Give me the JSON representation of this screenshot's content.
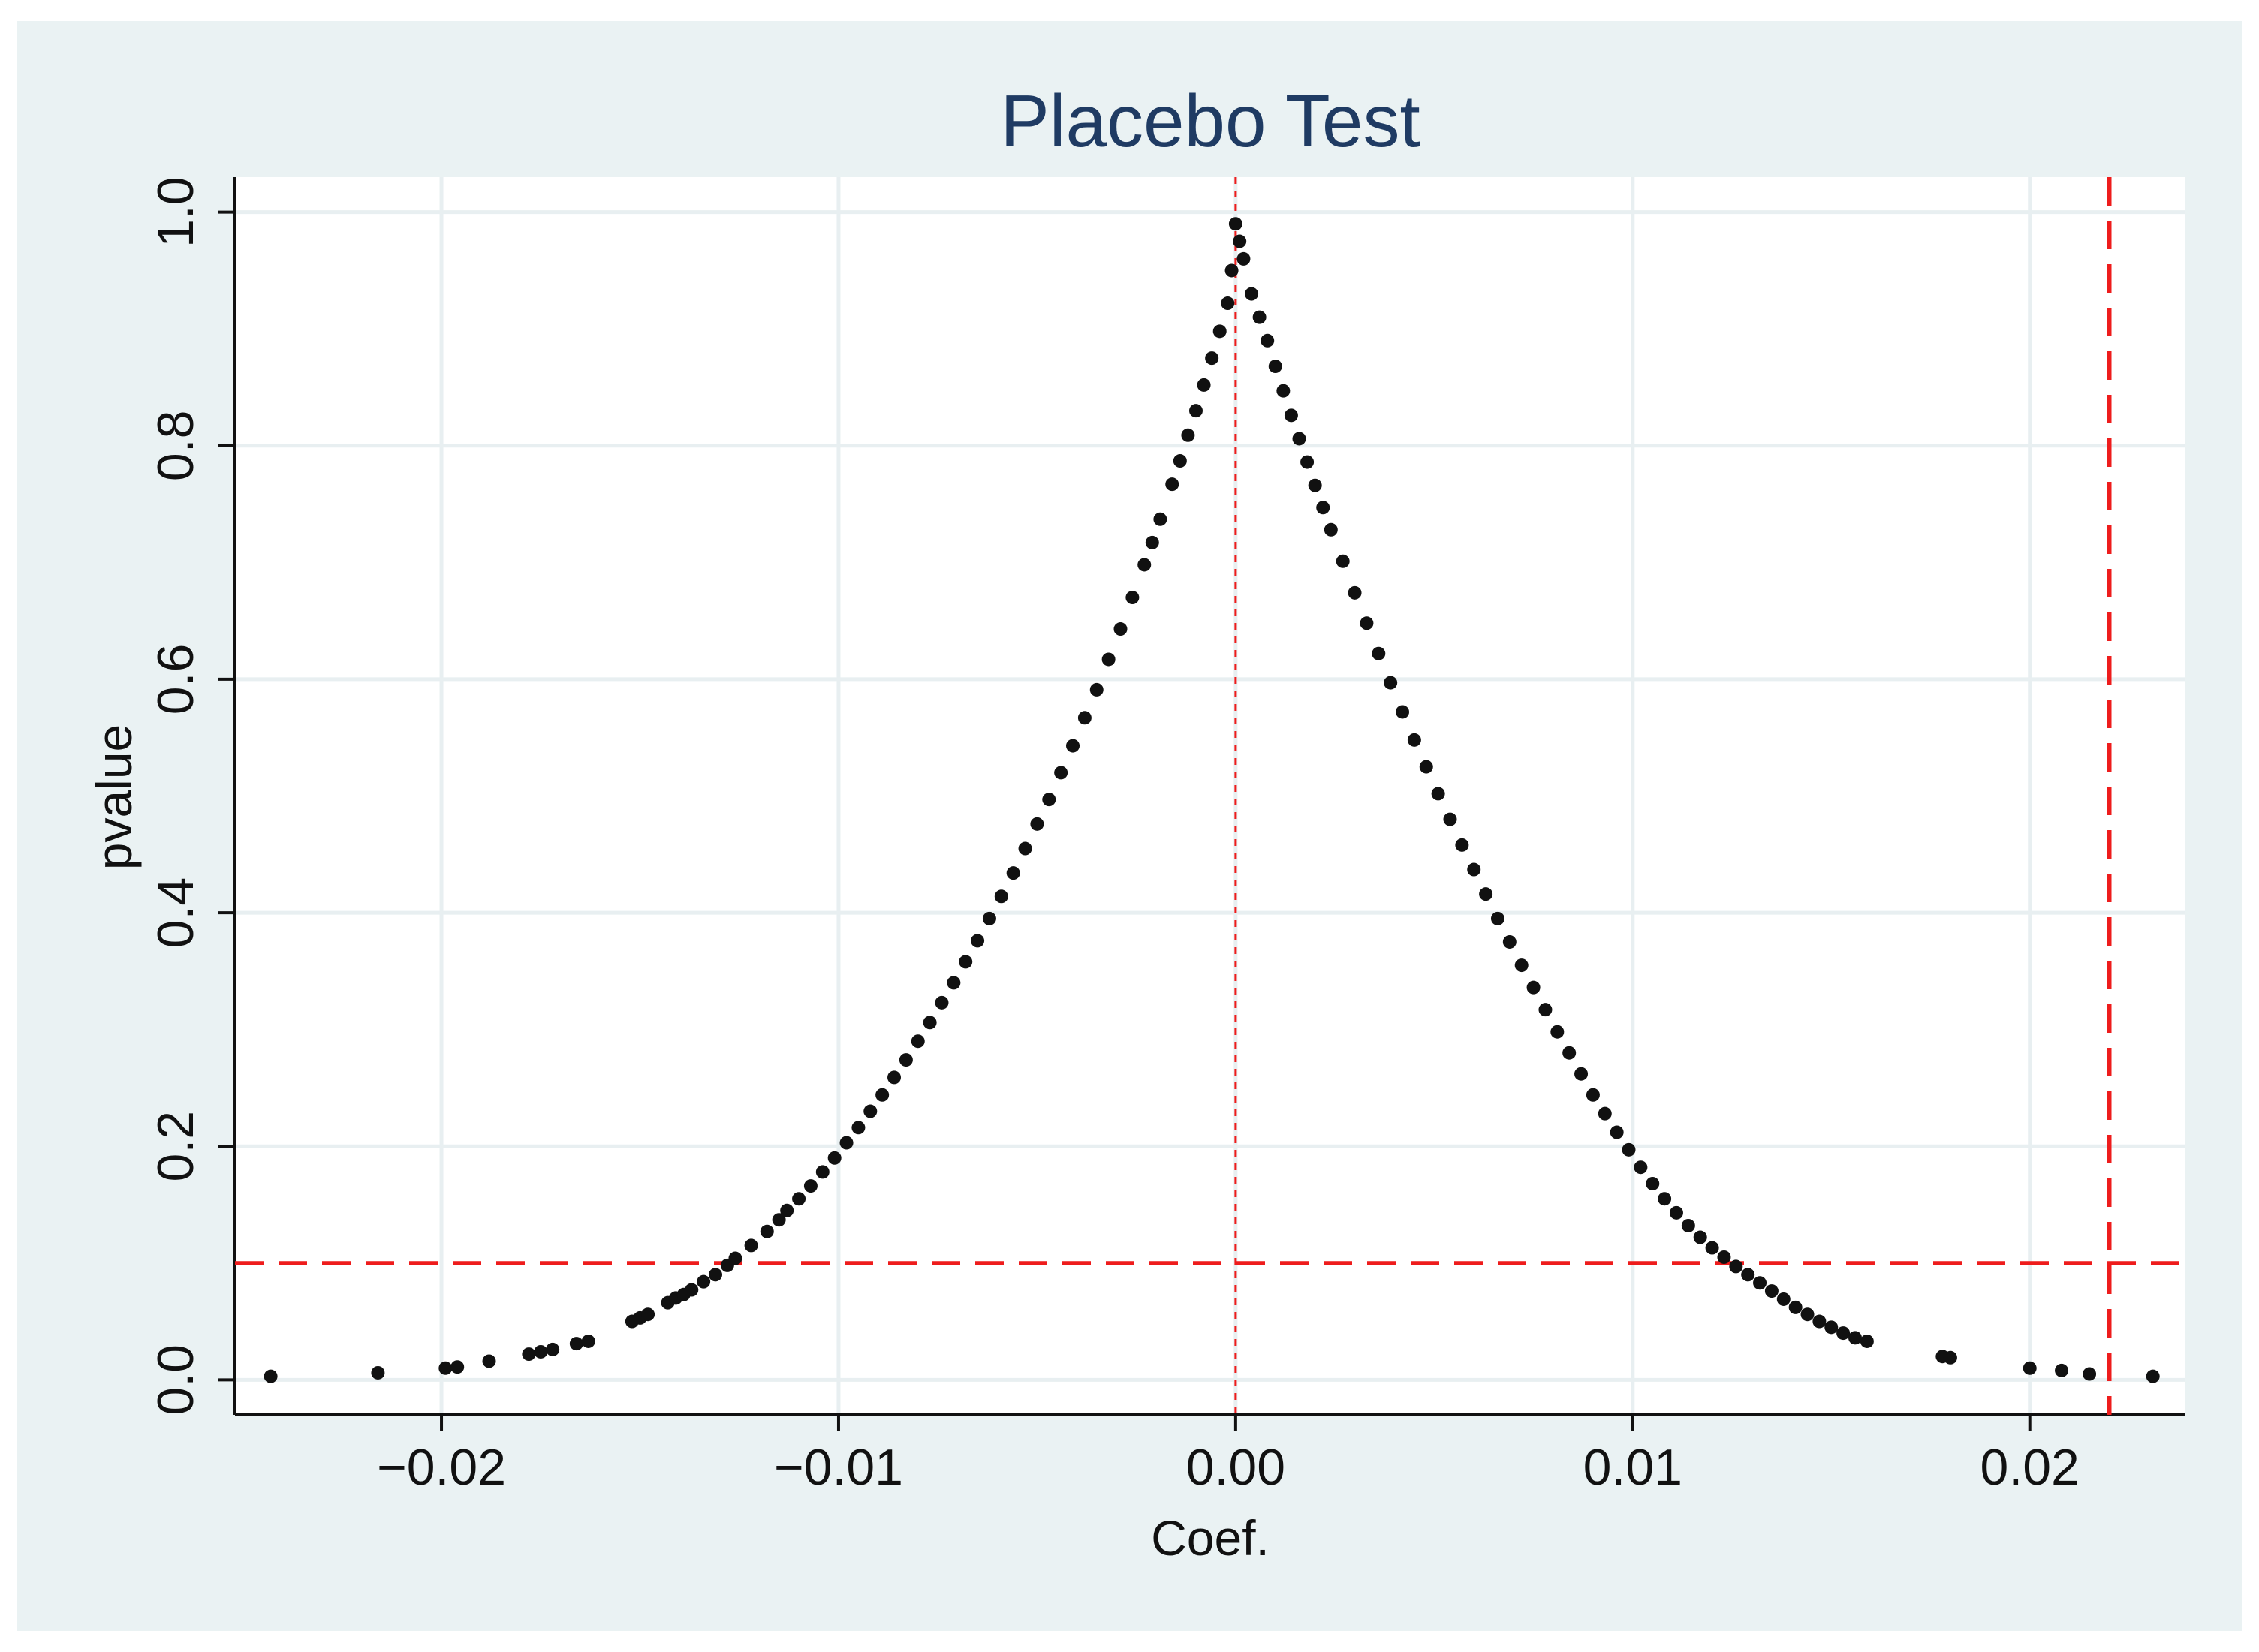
{
  "colors": {
    "outer_background": "#eaf2f3",
    "plot_background": "#ffffff",
    "grid": "#e8eff1",
    "title": "#1f3b63",
    "text": "#111111",
    "points": "#111111",
    "reference": "#ee1c1c"
  },
  "chart_data": {
    "type": "scatter",
    "title": "Placebo Test",
    "xlabel": "Coef.",
    "ylabel": "pvalue",
    "xlim": [
      -0.0252,
      0.0239
    ],
    "ylim": [
      -0.03,
      1.03
    ],
    "x_ticks": [
      -0.02,
      -0.01,
      0.0,
      0.01,
      0.02
    ],
    "x_tick_labels": [
      "−0.02",
      "−0.01",
      "0.00",
      "0.01",
      "0.02"
    ],
    "y_ticks": [
      0.0,
      0.2,
      0.4,
      0.6,
      0.8,
      1.0
    ],
    "y_tick_labels": [
      "0.0",
      "0.2",
      "0.4",
      "0.6",
      "0.8",
      "1.0"
    ],
    "grid": true,
    "legend": "none",
    "reference_lines": {
      "vertical_dashed_thick_at_x": 0.022,
      "horizontal_dashed_thick_at_y": 0.1,
      "vertical_dotted_thin_at_x": 0.0
    },
    "series": [
      {
        "points": [
          [
            -0.0243,
            0.003
          ],
          [
            -0.0216,
            0.006
          ],
          [
            -0.0199,
            0.01
          ],
          [
            -0.0196,
            0.011
          ],
          [
            -0.0188,
            0.016
          ],
          [
            -0.0178,
            0.022
          ],
          [
            -0.0175,
            0.024
          ],
          [
            -0.0172,
            0.026
          ],
          [
            -0.0166,
            0.031
          ],
          [
            -0.0163,
            0.033
          ],
          [
            -0.0152,
            0.05
          ],
          [
            -0.015,
            0.053
          ],
          [
            -0.0148,
            0.056
          ],
          [
            -0.0143,
            0.066
          ],
          [
            -0.0141,
            0.07
          ],
          [
            -0.0139,
            0.073
          ],
          [
            -0.0137,
            0.077
          ],
          [
            -0.0134,
            0.084
          ],
          [
            -0.0131,
            0.09
          ],
          [
            -0.0128,
            0.098
          ],
          [
            -0.0126,
            0.104
          ],
          [
            -0.0122,
            0.115
          ],
          [
            -0.0118,
            0.127
          ],
          [
            -0.0115,
            0.137
          ],
          [
            -0.0113,
            0.145
          ],
          [
            -0.011,
            0.155
          ],
          [
            -0.0107,
            0.166
          ],
          [
            -0.0104,
            0.178
          ],
          [
            -0.0101,
            0.19
          ],
          [
            -0.0098,
            0.203
          ],
          [
            -0.0095,
            0.216
          ],
          [
            -0.0092,
            0.23
          ],
          [
            -0.0089,
            0.244
          ],
          [
            -0.0086,
            0.259
          ],
          [
            -0.0083,
            0.274
          ],
          [
            -0.008,
            0.29
          ],
          [
            -0.0077,
            0.306
          ],
          [
            -0.0074,
            0.323
          ],
          [
            -0.0071,
            0.34
          ],
          [
            -0.0068,
            0.358
          ],
          [
            -0.0065,
            0.376
          ],
          [
            -0.0062,
            0.395
          ],
          [
            -0.0059,
            0.414
          ],
          [
            -0.0056,
            0.434
          ],
          [
            -0.0053,
            0.455
          ],
          [
            -0.005,
            0.476
          ],
          [
            -0.0047,
            0.497
          ],
          [
            -0.0044,
            0.52
          ],
          [
            -0.0041,
            0.543
          ],
          [
            -0.0038,
            0.567
          ],
          [
            -0.0035,
            0.591
          ],
          [
            -0.0032,
            0.617
          ],
          [
            -0.0029,
            0.643
          ],
          [
            -0.0026,
            0.67
          ],
          [
            -0.0023,
            0.698
          ],
          [
            -0.0021,
            0.717
          ],
          [
            -0.0019,
            0.737
          ],
          [
            -0.0016,
            0.767
          ],
          [
            -0.0014,
            0.787
          ],
          [
            -0.0012,
            0.809
          ],
          [
            -0.001,
            0.83
          ],
          [
            -0.0008,
            0.852
          ],
          [
            -0.0006,
            0.875
          ],
          [
            -0.0004,
            0.898
          ],
          [
            -0.0002,
            0.922
          ],
          [
            -0.0001,
            0.95
          ],
          [
            0.0,
            0.99
          ],
          [
            0.0001,
            0.975
          ],
          [
            0.0002,
            0.96
          ],
          [
            0.0004,
            0.93
          ],
          [
            0.0006,
            0.91
          ],
          [
            0.0008,
            0.89
          ],
          [
            0.001,
            0.868
          ],
          [
            0.0012,
            0.847
          ],
          [
            0.0014,
            0.826
          ],
          [
            0.0016,
            0.806
          ],
          [
            0.0018,
            0.786
          ],
          [
            0.002,
            0.766
          ],
          [
            0.0022,
            0.747
          ],
          [
            0.0024,
            0.728
          ],
          [
            0.0027,
            0.701
          ],
          [
            0.003,
            0.674
          ],
          [
            0.0033,
            0.648
          ],
          [
            0.0036,
            0.622
          ],
          [
            0.0039,
            0.597
          ],
          [
            0.0042,
            0.572
          ],
          [
            0.0045,
            0.548
          ],
          [
            0.0048,
            0.525
          ],
          [
            0.0051,
            0.502
          ],
          [
            0.0054,
            0.48
          ],
          [
            0.0057,
            0.458
          ],
          [
            0.006,
            0.437
          ],
          [
            0.0063,
            0.416
          ],
          [
            0.0066,
            0.395
          ],
          [
            0.0069,
            0.375
          ],
          [
            0.0072,
            0.355
          ],
          [
            0.0075,
            0.336
          ],
          [
            0.0078,
            0.317
          ],
          [
            0.0081,
            0.298
          ],
          [
            0.0084,
            0.28
          ],
          [
            0.0087,
            0.262
          ],
          [
            0.009,
            0.244
          ],
          [
            0.0093,
            0.228
          ],
          [
            0.0096,
            0.212
          ],
          [
            0.0099,
            0.197
          ],
          [
            0.0102,
            0.182
          ],
          [
            0.0105,
            0.168
          ],
          [
            0.0108,
            0.155
          ],
          [
            0.0111,
            0.143
          ],
          [
            0.0114,
            0.132
          ],
          [
            0.0117,
            0.122
          ],
          [
            0.012,
            0.113
          ],
          [
            0.0123,
            0.105
          ],
          [
            0.0126,
            0.097
          ],
          [
            0.0129,
            0.09
          ],
          [
            0.0132,
            0.083
          ],
          [
            0.0135,
            0.076
          ],
          [
            0.0138,
            0.069
          ],
          [
            0.0141,
            0.062
          ],
          [
            0.0144,
            0.056
          ],
          [
            0.0147,
            0.05
          ],
          [
            0.015,
            0.045
          ],
          [
            0.0153,
            0.04
          ],
          [
            0.0156,
            0.036
          ],
          [
            0.0159,
            0.033
          ],
          [
            0.0178,
            0.02
          ],
          [
            0.018,
            0.019
          ],
          [
            0.02,
            0.01
          ],
          [
            0.0208,
            0.008
          ],
          [
            0.0215,
            0.005
          ],
          [
            0.0231,
            0.003
          ]
        ]
      }
    ]
  }
}
